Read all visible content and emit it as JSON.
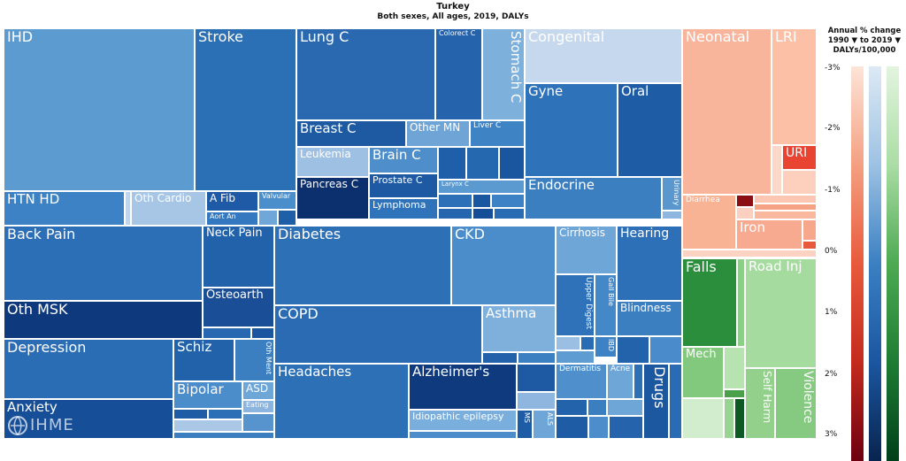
{
  "header": {
    "title": "Turkey",
    "subtitle": "Both sexes, All ages, 2019, DALYs"
  },
  "legend": {
    "title_line1": "Annual % change",
    "title_line2": "1990 ▼ to 2019 ▼",
    "title_line3": "DALYs/100,000",
    "ticks": [
      "-3%",
      "-2%",
      "-1%",
      "0%",
      "1%",
      "2%",
      "3%"
    ]
  },
  "logo": {
    "text": "IHME"
  },
  "colors": {
    "ncd": "#3f7fbe",
    "communicable": "#f08060",
    "injuries": "#4aa04a"
  },
  "chart_data": {
    "type": "treemap",
    "title": "Turkey",
    "subtitle": "Both sexes, All ages, 2019, DALYs",
    "metric": "Annual % change 1990 to 2019, DALYs/100,000",
    "color_scale_range": [
      -3,
      3
    ],
    "labels": {
      "ihd": "IHD",
      "stroke": "Stroke",
      "htn": "HTN HD",
      "othcardio": "Oth Cardio",
      "afib": "A Fib",
      "aortan": "Aort An",
      "valvular": "Valvular",
      "lungc": "Lung C",
      "colorectc": "Colorect C",
      "stomachc": "Stomach C",
      "breastc": "Breast C",
      "othermn": "Other MN",
      "liverc": "Liver C",
      "leukemia": "Leukemia",
      "brainc": "Brain C",
      "pancreasc": "Pancreas C",
      "prostatec": "Prostate C",
      "larynxc": "Larynx C",
      "lymphoma": "Lymphoma",
      "congenital": "Congenital",
      "gyne": "Gyne",
      "oral": "Oral",
      "endocrine": "Endocrine",
      "urinary": "Urinary",
      "backpain": "Back Pain",
      "neckpain": "Neck Pain",
      "osteoarth": "Osteoarth",
      "othmsk": "Oth MSK",
      "diabetes": "Diabetes",
      "ckd": "CKD",
      "copd": "COPD",
      "asthma": "Asthma",
      "cirrhosis": "Cirrhosis",
      "upperdigest": "Upper Digest",
      "gallbile": "Gall Bile",
      "ibd": "IBD",
      "hearing": "Hearing",
      "blindness": "Blindness",
      "depression": "Depression",
      "schiz": "Schiz",
      "othment": "Oth Ment",
      "bipolar": "Bipolar",
      "asd": "ASD",
      "eating": "Eating",
      "anxiety": "Anxiety",
      "headaches": "Headaches",
      "alzheimers": "Alzheimer's",
      "idioepilepsy": "Idiopathic epilepsy",
      "ms": "MS",
      "als": "ALS",
      "dermatitis": "Dermatitis",
      "acne": "Acne",
      "drugs": "Drugs",
      "neonatal": "Neonatal",
      "lri": "LRI",
      "uri": "URI",
      "diarrhea": "Diarrhea",
      "iron": "Iron",
      "falls": "Falls",
      "roadinj": "Road Inj",
      "mech": "Mech",
      "selfharm": "Self Harm",
      "violence": "Violence"
    },
    "cause_colors": {
      "ihd": "#5b9bd0",
      "stroke": "#2b6fb5",
      "lungc": "#2a69b0",
      "breastc": "#1e5aa2",
      "congenital": "#c5d8ee",
      "neonatal": "#f9b59b",
      "lri": "#fbc0a6",
      "uri": "#e84431",
      "falls": "#2a8e3c",
      "roadinj": "#a6dba0"
    }
  }
}
